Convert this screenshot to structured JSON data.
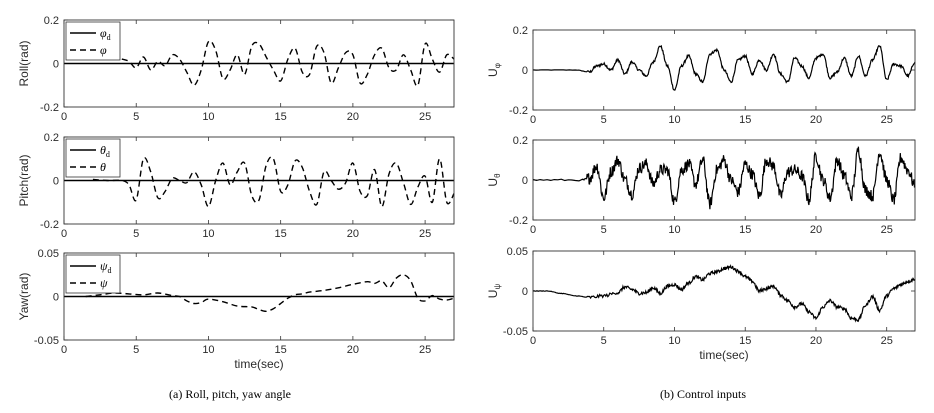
{
  "figure": {
    "caption_left": "(a)  Roll,  pitch,  yaw  angle",
    "caption_right": "(b)  Control  inputs"
  },
  "chart_data": [
    {
      "type": "line",
      "id": "roll",
      "ylabel": "Roll(rad)",
      "xlabel": "",
      "xlim": [
        0,
        27
      ],
      "ylim": [
        -0.2,
        0.2
      ],
      "xticks": [
        0,
        5,
        10,
        15,
        20,
        25
      ],
      "yticks": [
        -0.2,
        0,
        0.2
      ],
      "yticklabels": [
        "-0.2",
        "0",
        "0.2"
      ],
      "legend": [
        "φ_d",
        "φ"
      ],
      "legend_placement": "top-left",
      "series": [
        {
          "name": "φd",
          "style": "solid",
          "x": [
            0,
            27
          ],
          "y": [
            0,
            0
          ]
        },
        {
          "name": "φ",
          "style": "dashed",
          "x": [
            4.0,
            4.5,
            5.0,
            5.5,
            6.0,
            6.5,
            7.0,
            7.5,
            8.0,
            8.5,
            9.0,
            9.5,
            10.0,
            10.5,
            11.0,
            11.5,
            12.0,
            12.5,
            13.0,
            13.5,
            14.0,
            14.5,
            15.0,
            15.5,
            16.0,
            16.5,
            17.0,
            17.5,
            18.0,
            18.5,
            19.0,
            19.5,
            20.0,
            20.5,
            21.0,
            21.5,
            22.0,
            22.5,
            23.0,
            23.5,
            24.0,
            24.5,
            25.0,
            25.5,
            26.0,
            26.5,
            27.0
          ],
          "y": [
            0.02,
            0.01,
            -0.02,
            0.03,
            -0.03,
            0.01,
            -0.01,
            0.04,
            0.02,
            -0.04,
            -0.1,
            -0.03,
            0.1,
            0.06,
            -0.07,
            -0.03,
            0.04,
            -0.05,
            0.08,
            0.09,
            0.03,
            -0.03,
            -0.08,
            0.02,
            0.07,
            -0.04,
            -0.05,
            0.08,
            0.05,
            -0.09,
            -0.02,
            0.05,
            0.04,
            -0.09,
            -0.05,
            0.04,
            0.07,
            -0.02,
            -0.03,
            0.04,
            -0.03,
            -0.1,
            0.09,
            0.02,
            -0.04,
            0.04,
            0.02
          ]
        }
      ]
    },
    {
      "type": "line",
      "id": "pitch",
      "ylabel": "Pitch(rad)",
      "xlabel": "",
      "xlim": [
        0,
        27
      ],
      "ylim": [
        -0.2,
        0.2
      ],
      "xticks": [
        0,
        5,
        10,
        15,
        20,
        25
      ],
      "yticks": [
        -0.2,
        0,
        0.2
      ],
      "yticklabels": [
        "-0.2",
        "0",
        "0.2"
      ],
      "legend": [
        "θ_d",
        "θ"
      ],
      "legend_placement": "top-left",
      "series": [
        {
          "name": "θd",
          "style": "solid",
          "x": [
            0,
            27
          ],
          "y": [
            0,
            0
          ]
        },
        {
          "name": "θ",
          "style": "dashed",
          "x": [
            2.0,
            3.0,
            4.0,
            4.5,
            5.0,
            5.5,
            6.0,
            6.5,
            7.0,
            7.5,
            8.0,
            8.5,
            9.0,
            9.5,
            10.0,
            10.5,
            11.0,
            11.5,
            12.0,
            12.5,
            13.0,
            13.5,
            14.0,
            14.5,
            15.0,
            15.5,
            16.0,
            16.5,
            17.0,
            17.5,
            18.0,
            18.5,
            19.0,
            19.5,
            20.0,
            20.5,
            21.0,
            21.5,
            22.0,
            22.5,
            23.0,
            23.5,
            24.0,
            24.5,
            25.0,
            25.5,
            26.0,
            26.5,
            27.0
          ],
          "y": [
            0.005,
            0.0,
            0.0,
            -0.02,
            -0.09,
            0.1,
            0.04,
            -0.08,
            -0.05,
            0.01,
            0.0,
            -0.01,
            0.04,
            -0.02,
            -0.12,
            0.0,
            0.08,
            -0.02,
            0.04,
            0.08,
            -0.07,
            -0.09,
            0.07,
            0.1,
            -0.05,
            -0.02,
            0.09,
            0.06,
            -0.05,
            -0.11,
            0.04,
            0.0,
            -0.04,
            -0.01,
            0.08,
            -0.05,
            -0.07,
            0.05,
            -0.12,
            0.03,
            0.08,
            -0.01,
            -0.11,
            -0.03,
            0.02,
            -0.1,
            0.1,
            -0.1,
            -0.06
          ]
        }
      ]
    },
    {
      "type": "line",
      "id": "yaw",
      "ylabel": "Yaw(rad)",
      "xlabel": "time(sec)",
      "xlim": [
        0,
        27
      ],
      "ylim": [
        -0.05,
        0.05
      ],
      "xticks": [
        0,
        5,
        10,
        15,
        20,
        25
      ],
      "yticks": [
        -0.05,
        0,
        0.05
      ],
      "yticklabels": [
        "-0.05",
        "0",
        "0.05"
      ],
      "legend": [
        "ψ_d",
        "ψ"
      ],
      "legend_placement": "top-left",
      "series": [
        {
          "name": "ψd",
          "style": "solid",
          "x": [
            0,
            27
          ],
          "y": [
            0,
            0
          ]
        },
        {
          "name": "ψ",
          "style": "dashed",
          "x": [
            1.5,
            2.5,
            3.5,
            4.5,
            5.5,
            6.5,
            7.5,
            8.0,
            8.5,
            9.0,
            9.5,
            10.0,
            11.0,
            12.0,
            13.0,
            13.5,
            14.0,
            14.5,
            15.0,
            15.5,
            16.0,
            16.5,
            17.0,
            18.0,
            19.0,
            20.0,
            21.0,
            21.5,
            22.0,
            22.5,
            23.0,
            23.5,
            24.0,
            24.5,
            25.0,
            25.5,
            26.0,
            26.5,
            27.0
          ],
          "y": [
            0.0,
            0.002,
            0.004,
            0.003,
            0.002,
            0.004,
            0.001,
            0.0,
            -0.005,
            -0.008,
            -0.007,
            -0.003,
            -0.006,
            -0.011,
            -0.012,
            -0.015,
            -0.017,
            -0.014,
            -0.008,
            -0.002,
            0.002,
            0.003,
            0.005,
            0.007,
            0.01,
            0.014,
            0.017,
            0.015,
            0.018,
            0.01,
            0.021,
            0.025,
            0.018,
            -0.002,
            -0.005,
            0.001,
            -0.003,
            -0.004,
            -0.002
          ]
        }
      ]
    },
    {
      "type": "line",
      "id": "u_phi",
      "ylabel": "U_φ",
      "xlabel": "",
      "xlim": [
        0,
        27
      ],
      "ylim": [
        -0.2,
        0.2
      ],
      "xticks": [
        0,
        5,
        10,
        15,
        20,
        25
      ],
      "yticks": [
        -0.2,
        0,
        0.2
      ],
      "yticklabels": [
        "-0.2",
        "0",
        "0.2"
      ],
      "series": [
        {
          "name": "",
          "style": "solid",
          "noise": 0.006,
          "x": [
            0,
            3.0,
            4.0,
            4.5,
            5.0,
            5.5,
            6.0,
            6.5,
            7.0,
            7.5,
            8.0,
            8.5,
            9.0,
            9.5,
            10.0,
            10.5,
            11.0,
            11.5,
            12.0,
            12.5,
            13.0,
            13.5,
            14.0,
            14.5,
            15.0,
            15.5,
            16.0,
            16.5,
            17.0,
            17.5,
            18.0,
            18.5,
            19.0,
            19.5,
            20.0,
            20.5,
            21.0,
            21.5,
            22.0,
            22.5,
            23.0,
            23.5,
            24.0,
            24.5,
            25.0,
            25.5,
            26.0,
            26.5,
            27.0
          ],
          "y": [
            0,
            0,
            -0.01,
            0.02,
            0.03,
            0.0,
            0.05,
            -0.02,
            0.04,
            0.0,
            -0.03,
            0.04,
            0.12,
            0.02,
            -0.1,
            0.02,
            0.07,
            -0.02,
            -0.06,
            0.08,
            0.1,
            0.0,
            -0.06,
            0.05,
            0.07,
            -0.02,
            0.05,
            0.0,
            0.08,
            -0.02,
            -0.06,
            0.06,
            0.02,
            -0.04,
            0.06,
            0.08,
            -0.04,
            -0.01,
            0.06,
            -0.03,
            0.07,
            -0.03,
            0.05,
            0.12,
            -0.05,
            0.03,
            0.02,
            -0.03,
            0.04
          ]
        }
      ]
    },
    {
      "type": "line",
      "id": "u_theta",
      "ylabel": "U_θ",
      "xlabel": "",
      "xlim": [
        0,
        27
      ],
      "ylim": [
        -0.2,
        0.2
      ],
      "xticks": [
        0,
        5,
        10,
        15,
        20,
        25
      ],
      "yticks": [
        -0.2,
        0,
        0.2
      ],
      "yticklabels": [
        "-0.2",
        "0",
        "0.2"
      ],
      "series": [
        {
          "name": "",
          "style": "solid",
          "noise": 0.03,
          "x": [
            0,
            3.5,
            4.0,
            4.5,
            5.0,
            5.5,
            6.0,
            6.5,
            7.0,
            7.5,
            8.0,
            8.5,
            9.0,
            9.5,
            10.0,
            10.5,
            11.0,
            11.5,
            12.0,
            12.5,
            13.0,
            13.5,
            14.0,
            14.5,
            15.0,
            15.5,
            16.0,
            16.5,
            17.0,
            17.5,
            18.0,
            18.5,
            19.0,
            19.5,
            20.0,
            20.5,
            21.0,
            21.5,
            22.0,
            22.5,
            23.0,
            23.5,
            24.0,
            24.5,
            25.0,
            25.5,
            26.0,
            26.5,
            27.0
          ],
          "y": [
            0,
            0,
            0.01,
            0.07,
            -0.09,
            0.04,
            0.1,
            0.0,
            -0.07,
            0.06,
            0.08,
            -0.02,
            0.05,
            0.05,
            -0.11,
            0.05,
            0.08,
            -0.02,
            0.1,
            -0.12,
            0.05,
            0.1,
            0.0,
            -0.06,
            0.08,
            0.03,
            -0.08,
            0.1,
            0.07,
            -0.08,
            0.04,
            0.05,
            0.02,
            -0.1,
            0.12,
            0.0,
            -0.09,
            0.1,
            0.02,
            -0.08,
            0.15,
            -0.05,
            -0.08,
            0.14,
            0.0,
            -0.1,
            0.11,
            0.05,
            -0.03
          ]
        }
      ]
    },
    {
      "type": "line",
      "id": "u_psi",
      "ylabel": "U_ψ",
      "xlabel": "time(sec)",
      "xlim": [
        0,
        27
      ],
      "ylim": [
        -0.05,
        0.05
      ],
      "xticks": [
        0,
        5,
        10,
        15,
        20,
        25
      ],
      "yticks": [
        -0.05,
        0,
        0.05
      ],
      "yticklabels": [
        "-0.05",
        "0",
        "0.05"
      ],
      "series": [
        {
          "name": "",
          "style": "solid",
          "noise": 0.002,
          "x": [
            0,
            1.0,
            2.0,
            3.0,
            4.0,
            5.0,
            6.0,
            6.5,
            7.0,
            7.5,
            8.0,
            8.5,
            9.0,
            9.5,
            10.0,
            10.5,
            11.0,
            11.5,
            12.0,
            12.5,
            13.0,
            13.5,
            14.0,
            14.5,
            15.0,
            15.5,
            16.0,
            16.5,
            17.0,
            17.5,
            18.0,
            18.5,
            19.0,
            19.5,
            20.0,
            20.5,
            21.0,
            21.5,
            22.0,
            22.5,
            23.0,
            23.5,
            24.0,
            24.5,
            25.0,
            25.5,
            26.0,
            26.5,
            27.0
          ],
          "y": [
            0,
            0,
            -0.003,
            -0.006,
            -0.008,
            -0.006,
            -0.002,
            0.005,
            0.002,
            -0.003,
            -0.002,
            0.004,
            -0.003,
            0.006,
            0.008,
            0.002,
            0.01,
            0.018,
            0.014,
            0.022,
            0.024,
            0.028,
            0.03,
            0.025,
            0.018,
            0.012,
            0.0,
            0.003,
            0.006,
            -0.005,
            -0.012,
            -0.02,
            -0.016,
            -0.026,
            -0.034,
            -0.02,
            -0.012,
            -0.02,
            -0.022,
            -0.034,
            -0.036,
            -0.018,
            -0.007,
            -0.024,
            -0.006,
            0.003,
            0.008,
            0.012,
            0.015
          ]
        }
      ]
    }
  ]
}
